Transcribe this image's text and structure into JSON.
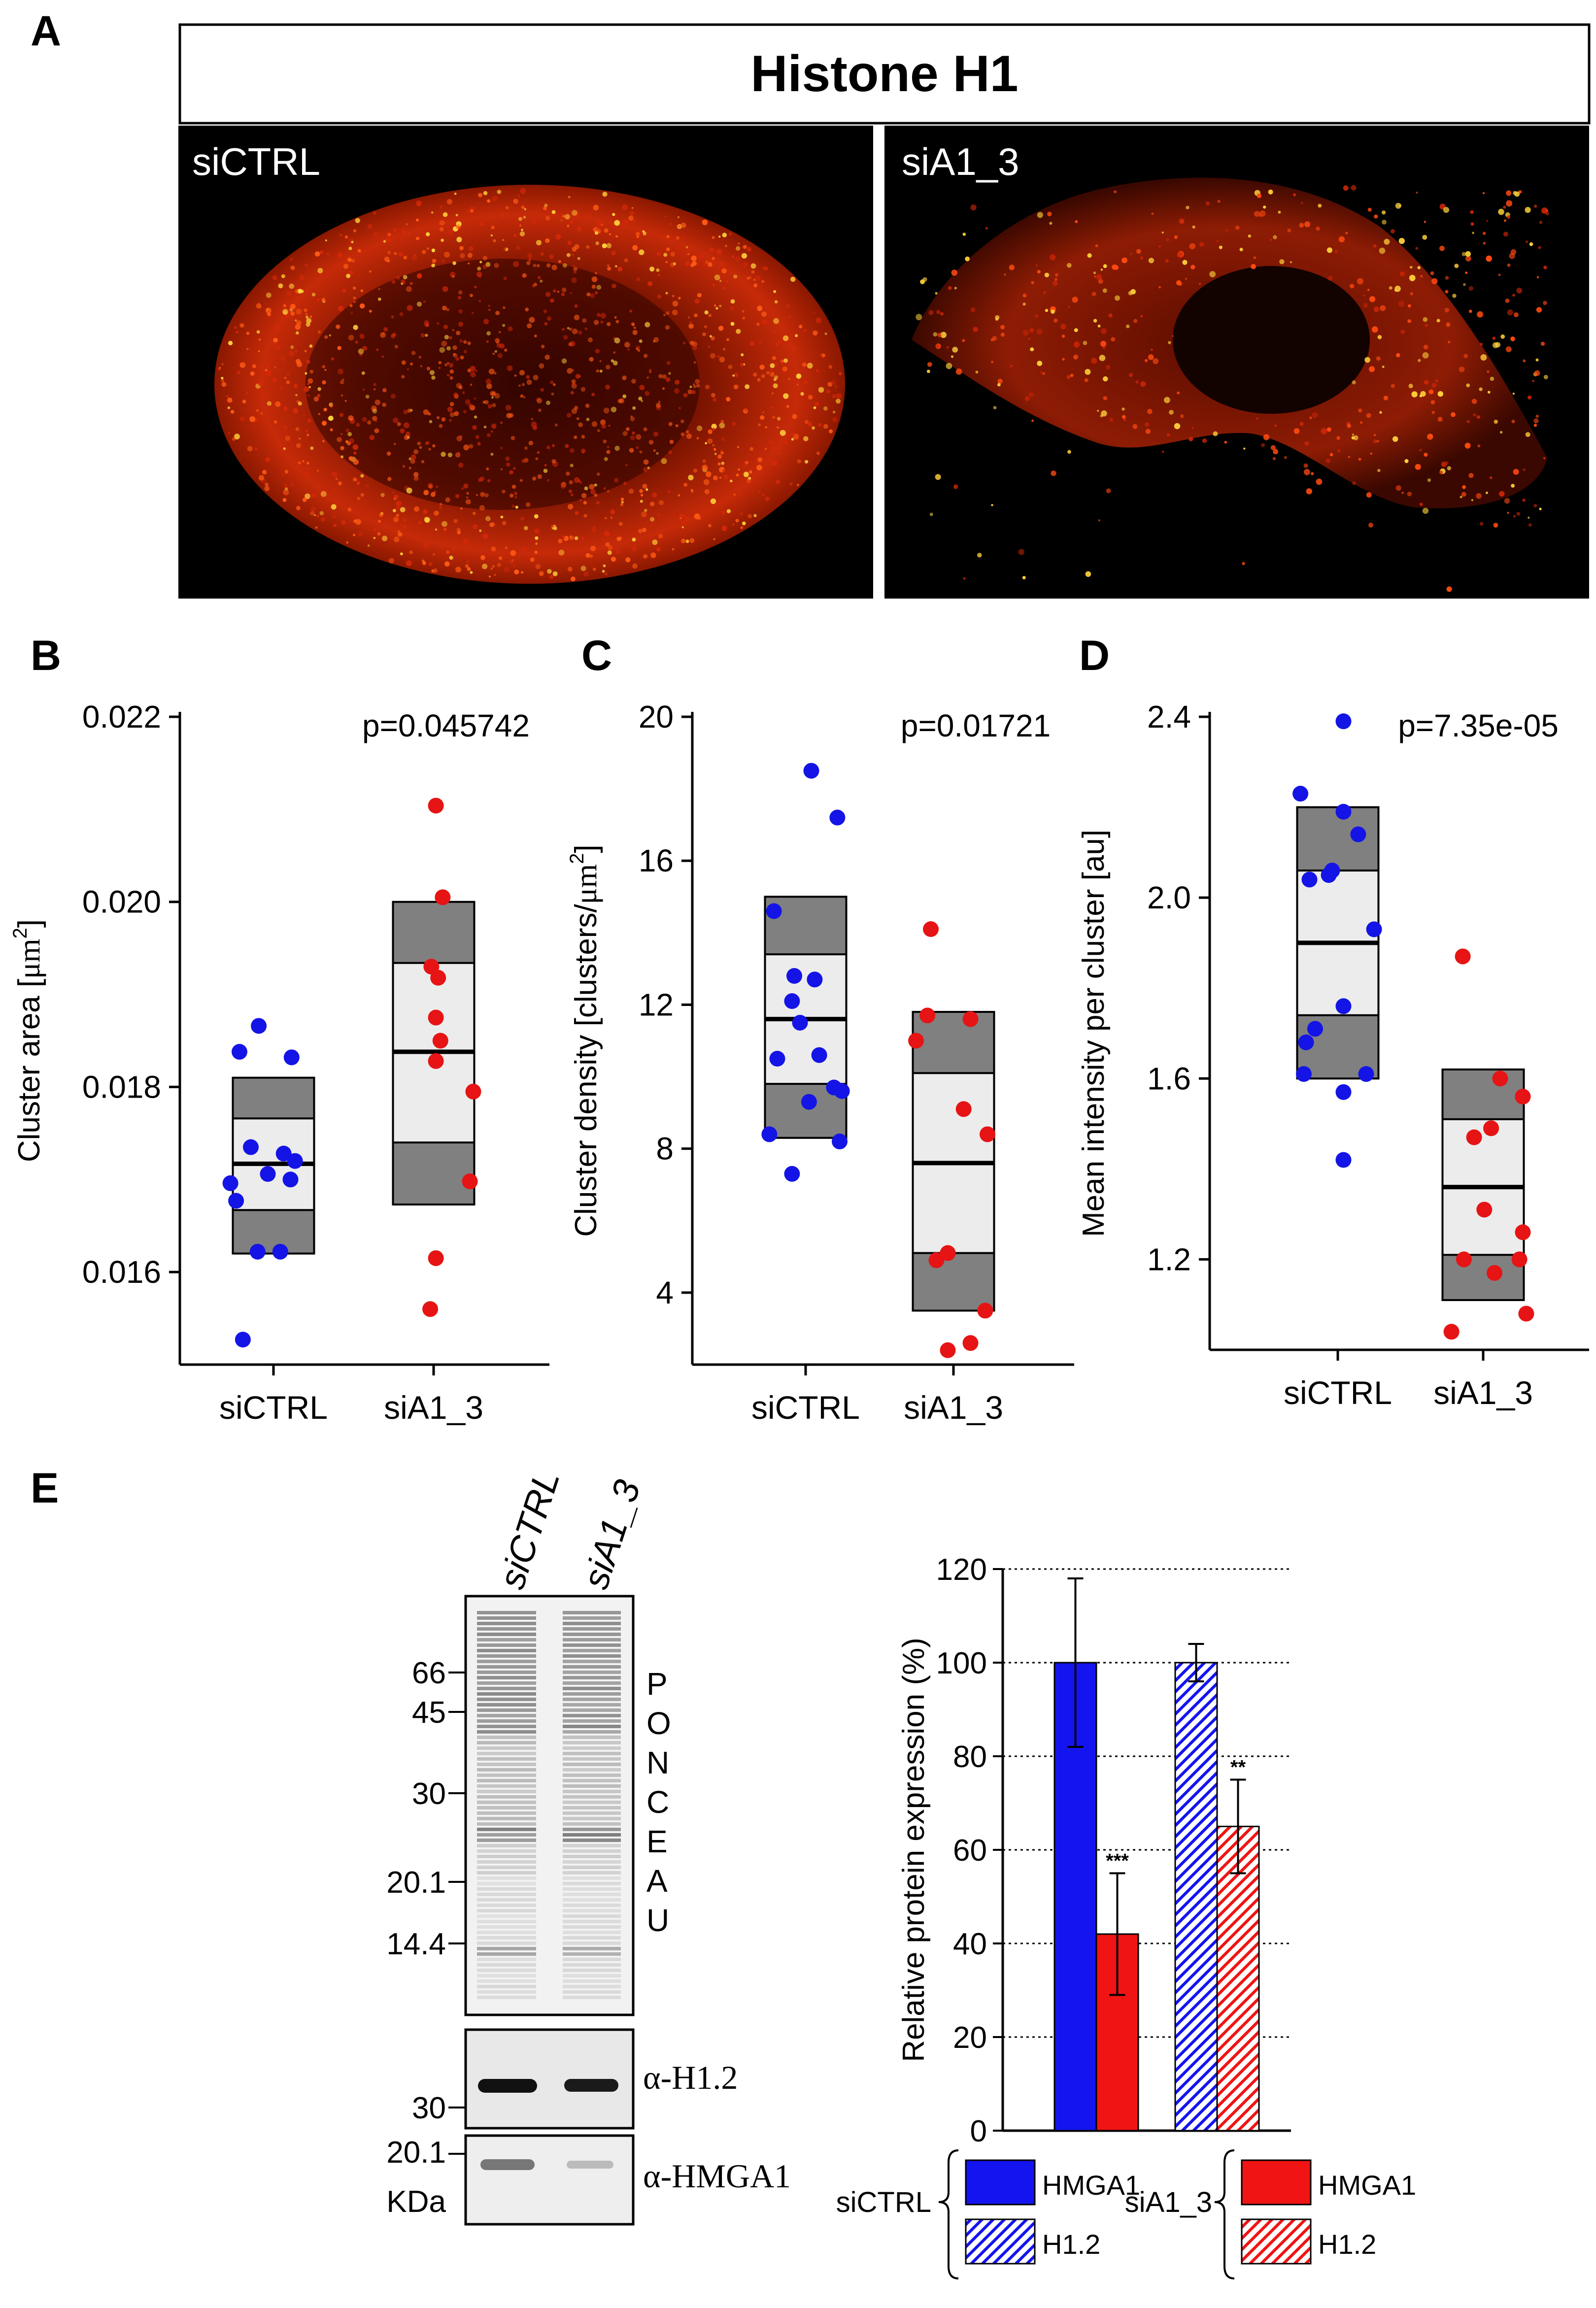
{
  "panel_letters": {
    "a": "A",
    "b": "B",
    "c": "C",
    "d": "D",
    "e": "E"
  },
  "panel_a": {
    "title": "Histone H1",
    "left_label": "siCTRL",
    "right_label": "siA1_3"
  },
  "chart_data": [
    {
      "type": "scatter",
      "panel": "B",
      "ylabel_main": "Cluster area [",
      "ylabel_unit": "μm",
      "ylabel_sup": "2",
      "ylabel_end": "]",
      "ylim": [
        0.015,
        0.022
      ],
      "yticks": [
        0.016,
        0.018,
        0.02,
        0.022
      ],
      "ytick_labels": [
        "0.016",
        "0.018",
        "0.020",
        "0.022"
      ],
      "categories": [
        "siCTRL",
        "siA1_3"
      ],
      "pvalue": "p=0.045742",
      "boxes": [
        {
          "q10": 0.0162,
          "q25": 0.01667,
          "median": 0.01717,
          "q75": 0.01766,
          "q90": 0.0181
        },
        {
          "q10": 0.01673,
          "q25": 0.0174,
          "median": 0.01838,
          "q75": 0.01934,
          "q90": 0.02
        }
      ],
      "series": [
        {
          "name": "siCTRL",
          "color": "#1414e6",
          "points": [
            [
              -0.3,
              0.01838
            ],
            [
              -0.13,
              0.01866
            ],
            [
              0.16,
              0.01832
            ],
            [
              -0.38,
              0.01696
            ],
            [
              -0.2,
              0.01735
            ],
            [
              0.09,
              0.01728
            ],
            [
              0.19,
              0.0172
            ],
            [
              -0.05,
              0.01706
            ],
            [
              0.15,
              0.017
            ],
            [
              -0.33,
              0.01677
            ],
            [
              -0.14,
              0.01622
            ],
            [
              0.06,
              0.01622
            ],
            [
              -0.27,
              0.01527
            ]
          ]
        },
        {
          "name": "siA1_3",
          "color": "#e61414",
          "points": [
            [
              0.02,
              0.02104
            ],
            [
              0.08,
              0.02005
            ],
            [
              -0.02,
              0.0193
            ],
            [
              0.04,
              0.01918
            ],
            [
              0.02,
              0.01875
            ],
            [
              0.06,
              0.0185
            ],
            [
              0.02,
              0.01828
            ],
            [
              0.35,
              0.01795
            ],
            [
              0.32,
              0.01698
            ],
            [
              0.02,
              0.01615
            ],
            [
              -0.03,
              0.0156
            ]
          ]
        }
      ]
    },
    {
      "type": "scatter",
      "panel": "C",
      "ylabel_main": "Cluster density [clusters/",
      "ylabel_unit": "μm",
      "ylabel_sup": "2",
      "ylabel_end": "]",
      "ylim": [
        2,
        20
      ],
      "yticks": [
        4,
        8,
        12,
        16,
        20
      ],
      "ytick_labels": [
        "4",
        "8",
        "12",
        "16",
        "20"
      ],
      "categories": [
        "siCTRL",
        "siA1_3"
      ],
      "pvalue": "p=0.01721",
      "boxes": [
        {
          "q10": 8.3,
          "q25": 9.8,
          "median": 11.6,
          "q75": 13.4,
          "q90": 15.0
        },
        {
          "q10": 3.5,
          "q25": 5.1,
          "median": 7.6,
          "q75": 10.1,
          "q90": 11.8
        }
      ],
      "series": [
        {
          "name": "siCTRL",
          "color": "#1414e6",
          "points": [
            [
              0.05,
              18.5
            ],
            [
              0.28,
              17.2
            ],
            [
              -0.28,
              14.6
            ],
            [
              -0.1,
              12.8
            ],
            [
              0.08,
              12.7
            ],
            [
              -0.12,
              12.1
            ],
            [
              -0.05,
              11.5
            ],
            [
              0.12,
              10.6
            ],
            [
              -0.25,
              10.5
            ],
            [
              0.03,
              9.3
            ],
            [
              0.25,
              9.7
            ],
            [
              0.32,
              9.6
            ],
            [
              -0.32,
              8.4
            ],
            [
              0.3,
              8.2
            ],
            [
              -0.12,
              7.3
            ]
          ]
        },
        {
          "name": "siA1_3",
          "color": "#e61414",
          "points": [
            [
              -0.2,
              14.1
            ],
            [
              -0.23,
              11.7
            ],
            [
              0.15,
              11.6
            ],
            [
              -0.33,
              11.0
            ],
            [
              0.09,
              9.1
            ],
            [
              0.3,
              8.4
            ],
            [
              -0.05,
              5.1
            ],
            [
              -0.15,
              4.9
            ],
            [
              0.28,
              3.5
            ],
            [
              -0.05,
              2.4
            ],
            [
              0.15,
              2.6
            ]
          ]
        }
      ]
    },
    {
      "type": "scatter",
      "panel": "D",
      "ylabel_main": "Mean intensity per cluster [au]",
      "ylabel_unit": "",
      "ylabel_sup": "",
      "ylabel_end": "",
      "ylim": [
        1.0,
        2.4
      ],
      "yticks": [
        1.2,
        1.6,
        2.0,
        2.4
      ],
      "ytick_labels": [
        "1.2",
        "1.6",
        "2.0",
        "2.4"
      ],
      "categories": [
        "siCTRL",
        "siA1_3"
      ],
      "pvalue": "p=7.35e-05",
      "boxes": [
        {
          "q10": 1.6,
          "q25": 1.74,
          "median": 1.9,
          "q75": 2.06,
          "q90": 2.2
        },
        {
          "q10": 1.11,
          "q25": 1.21,
          "median": 1.36,
          "q75": 1.51,
          "q90": 1.62
        }
      ],
      "series": [
        {
          "name": "siCTRL",
          "color": "#1414e6",
          "points": [
            [
              0.05,
              2.39
            ],
            [
              -0.33,
              2.23
            ],
            [
              0.05,
              2.19
            ],
            [
              0.18,
              2.14
            ],
            [
              -0.25,
              2.04
            ],
            [
              -0.08,
              2.05
            ],
            [
              -0.05,
              2.06
            ],
            [
              0.32,
              1.93
            ],
            [
              -0.2,
              1.71
            ],
            [
              -0.28,
              1.68
            ],
            [
              0.05,
              1.76
            ],
            [
              -0.3,
              1.61
            ],
            [
              0.25,
              1.61
            ],
            [
              0.05,
              1.57
            ],
            [
              0.05,
              1.42
            ]
          ]
        },
        {
          "name": "siA1_3",
          "color": "#e61414",
          "points": [
            [
              -0.18,
              1.87
            ],
            [
              0.15,
              1.6
            ],
            [
              0.07,
              1.49
            ],
            [
              0.35,
              1.56
            ],
            [
              -0.08,
              1.47
            ],
            [
              0.01,
              1.31
            ],
            [
              0.35,
              1.26
            ],
            [
              -0.17,
              1.2
            ],
            [
              0.1,
              1.17
            ],
            [
              0.32,
              1.2
            ],
            [
              0.38,
              1.08
            ],
            [
              -0.28,
              1.04
            ]
          ]
        }
      ]
    },
    {
      "type": "bar",
      "panel": "E",
      "ylabel": "Relative protein expression (%)",
      "ylim": [
        0,
        120
      ],
      "yticks": [
        0,
        20,
        40,
        60,
        80,
        100,
        120
      ],
      "ytick_labels": [
        "0",
        "20",
        "40",
        "60",
        "80",
        "100",
        "120"
      ],
      "groups": [
        "HMGA1",
        "H1.2"
      ],
      "series": [
        {
          "name": "siCTRL",
          "values": [
            100,
            100
          ],
          "errors": [
            18,
            4
          ],
          "color": "#1414f0"
        },
        {
          "name": "siA1_3",
          "values": [
            42,
            65
          ],
          "errors": [
            13,
            10
          ],
          "color": "#f01414"
        }
      ],
      "significance": [
        "***",
        "**"
      ],
      "legend": {
        "group1": "siCTRL",
        "group2": "siA1_3",
        "items1": [
          "HMGA1",
          "H1.2"
        ],
        "items2": [
          "HMGA1",
          "H1.2"
        ]
      }
    }
  ],
  "blot": {
    "lanes": [
      "siCTRL",
      "siA1_3"
    ],
    "ponceau": [
      "P",
      "O",
      "N",
      "C",
      "E",
      "A",
      "U"
    ],
    "markers": [
      "66",
      "45",
      "30",
      "20.1",
      "14.4"
    ],
    "h12_marker": "30",
    "h12_label": "α-H1.2",
    "hmga1_marker": "20.1",
    "hmga1_label": "α-HMGA1",
    "unit": "KDa"
  }
}
